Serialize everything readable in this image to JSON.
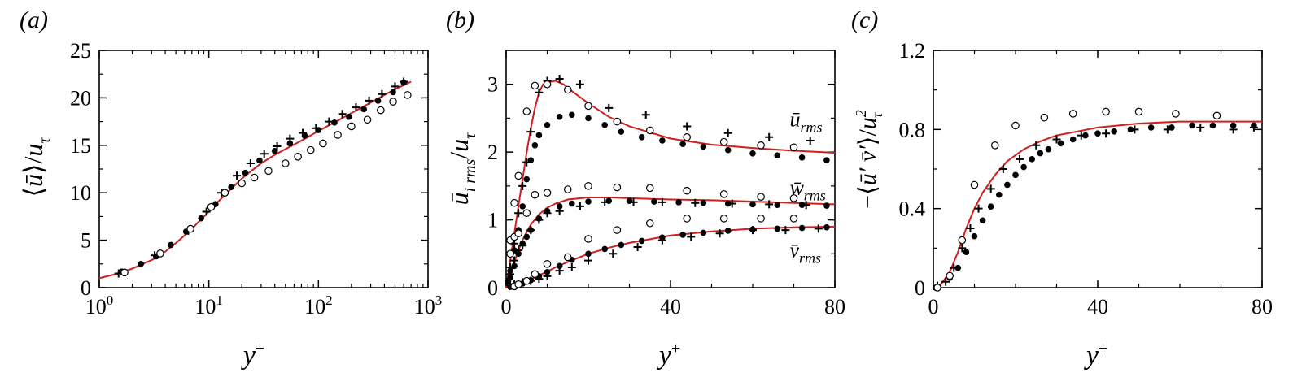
{
  "chart_data": [
    {
      "panel": "(a)",
      "type": "scatter",
      "xscale": "log",
      "xlim": [
        1,
        1000
      ],
      "ylim": [
        0,
        25
      ],
      "xlabel": "y+",
      "ylabel": "⟨ū⟩/uτ",
      "x_ticks": [
        1,
        10,
        100,
        1000
      ],
      "x_tick_labels": [
        {
          "base": "10",
          "exp": "0"
        },
        {
          "base": "10",
          "exp": "1"
        },
        {
          "base": "10",
          "exp": "2"
        },
        {
          "base": "10",
          "exp": "3"
        }
      ],
      "y_ticks": [
        0,
        5,
        10,
        15,
        20,
        25
      ],
      "y_tick_labels": [
        "0",
        "5",
        "10",
        "15",
        "20",
        "25"
      ],
      "series": [
        {
          "marker": "line",
          "color": "#d11f1f",
          "x": [
            1,
            1.5,
            2,
            3,
            4,
            5,
            6,
            7,
            8,
            10,
            12,
            15,
            20,
            25,
            30,
            40,
            50,
            70,
            100,
            150,
            200,
            300,
            400,
            500,
            700
          ],
          "y": [
            1.0,
            1.5,
            2.0,
            2.9,
            3.8,
            4.7,
            5.5,
            6.2,
            6.9,
            8.0,
            9.0,
            10.1,
            11.5,
            12.4,
            13.1,
            14.0,
            14.6,
            15.5,
            16.5,
            17.6,
            18.4,
            19.5,
            20.3,
            20.9,
            21.7
          ]
        },
        {
          "marker": "filled-circle",
          "color": "#000000",
          "x": [
            1.6,
            2.4,
            3.3,
            4.5,
            6.2,
            8.5,
            11.5,
            16,
            21.5,
            29,
            40,
            55,
            75,
            100,
            140,
            190,
            260,
            350,
            480,
            600
          ],
          "y": [
            1.7,
            2.5,
            3.3,
            4.5,
            5.9,
            7.3,
            8.8,
            10.6,
            12.1,
            13.4,
            14.4,
            15.2,
            16.0,
            16.6,
            17.4,
            18.0,
            18.8,
            19.7,
            20.6,
            21.6
          ]
        },
        {
          "marker": "plus",
          "color": "#000000",
          "x": [
            1.5,
            3.2,
            6.5,
            9.5,
            13,
            18,
            24,
            32,
            42,
            55,
            72,
            95,
            125,
            165,
            220,
            290,
            380,
            500,
            600
          ],
          "y": [
            1.5,
            3.4,
            6.0,
            8.0,
            10.0,
            11.8,
            13.1,
            14.1,
            14.9,
            15.7,
            16.3,
            16.8,
            17.5,
            18.3,
            19.0,
            19.7,
            20.4,
            21.2,
            21.7
          ]
        },
        {
          "marker": "open-circle",
          "color": "#000000",
          "x": [
            1.7,
            3.6,
            6.8,
            10.5,
            14,
            20,
            26,
            35,
            50,
            65,
            85,
            110,
            150,
            200,
            280,
            370,
            480,
            650
          ],
          "y": [
            1.6,
            3.6,
            6.2,
            8.5,
            10.0,
            11.0,
            11.6,
            12.3,
            13.1,
            13.8,
            14.5,
            15.2,
            16.1,
            17.0,
            17.7,
            18.7,
            19.6,
            20.3
          ]
        }
      ]
    },
    {
      "panel": "(b)",
      "type": "scatter",
      "xlim": [
        0,
        80
      ],
      "ylim": [
        0,
        3.5
      ],
      "xlabel": "y+",
      "ylabel": "ū_i rms/uτ",
      "x_ticks": [
        0,
        40,
        80
      ],
      "x_tick_labels": [
        "0",
        "40",
        "80"
      ],
      "y_ticks": [
        0,
        1,
        2,
        3
      ],
      "y_tick_labels": [
        "0",
        "1",
        "2",
        "3"
      ],
      "annotations": [
        {
          "name": "u-rms",
          "base": "ū",
          "sub": "rms",
          "x": 69,
          "y": 2.38
        },
        {
          "name": "w-rms",
          "base": "w̄",
          "sub": "rms",
          "x": 69,
          "y": 1.37
        },
        {
          "name": "v-rms",
          "base": "v̄",
          "sub": "rms",
          "x": 69,
          "y": 0.45
        }
      ],
      "series": [
        {
          "name": "u_rms",
          "marker": "line",
          "color": "#d11f1f",
          "x": [
            0,
            1,
            2,
            3,
            4,
            5,
            6,
            7,
            8,
            9,
            10,
            12,
            14,
            16,
            20,
            25,
            30,
            40,
            50,
            60,
            70,
            80
          ],
          "y": [
            0,
            0.4,
            0.8,
            1.2,
            1.6,
            2.0,
            2.35,
            2.65,
            2.88,
            3.0,
            3.03,
            3.05,
            3.0,
            2.9,
            2.72,
            2.52,
            2.38,
            2.2,
            2.11,
            2.06,
            2.02,
            1.99
          ]
        },
        {
          "name": "w_rms",
          "marker": "line",
          "color": "#d11f1f",
          "x": [
            0,
            1,
            2,
            3,
            4,
            5,
            6,
            8,
            10,
            12,
            15,
            20,
            25,
            30,
            40,
            50,
            60,
            70,
            80
          ],
          "y": [
            0,
            0.18,
            0.38,
            0.55,
            0.7,
            0.82,
            0.93,
            1.08,
            1.18,
            1.24,
            1.3,
            1.33,
            1.33,
            1.32,
            1.3,
            1.29,
            1.27,
            1.25,
            1.23
          ]
        },
        {
          "name": "v_rms",
          "marker": "line",
          "color": "#d11f1f",
          "x": [
            0,
            2,
            4,
            6,
            8,
            10,
            12,
            15,
            20,
            25,
            30,
            40,
            50,
            60,
            70,
            80
          ],
          "y": [
            0,
            0.02,
            0.06,
            0.12,
            0.18,
            0.24,
            0.3,
            0.38,
            0.5,
            0.59,
            0.66,
            0.77,
            0.83,
            0.87,
            0.89,
            0.9
          ]
        },
        {
          "name": "u_rms",
          "marker": "filled-circle",
          "color": "#000000",
          "x": [
            0.5,
            1,
            2,
            3,
            4,
            5,
            6,
            7,
            8,
            10,
            13,
            16,
            20,
            24,
            28,
            33,
            38,
            43,
            48,
            54,
            60,
            66,
            72,
            78
          ],
          "y": [
            0.1,
            0.25,
            0.55,
            0.85,
            1.2,
            1.6,
            1.88,
            2.1,
            2.25,
            2.4,
            2.52,
            2.55,
            2.5,
            2.4,
            2.3,
            2.22,
            2.17,
            2.12,
            2.08,
            2.03,
            1.98,
            1.95,
            1.92,
            1.88
          ]
        },
        {
          "name": "w_rms",
          "marker": "filled-circle",
          "color": "#000000",
          "x": [
            0.5,
            1,
            2,
            3,
            4,
            5,
            6,
            8,
            10,
            13,
            16,
            20,
            25,
            30,
            36,
            42,
            48,
            54,
            60,
            66,
            72,
            78
          ],
          "y": [
            0.06,
            0.15,
            0.32,
            0.5,
            0.65,
            0.75,
            0.85,
            1.02,
            1.13,
            1.2,
            1.24,
            1.27,
            1.28,
            1.28,
            1.27,
            1.26,
            1.25,
            1.24,
            1.23,
            1.22,
            1.22,
            1.21
          ]
        },
        {
          "name": "v_rms",
          "marker": "filled-circle",
          "color": "#000000",
          "x": [
            1,
            2,
            3,
            4,
            6,
            8,
            10,
            13,
            16,
            20,
            24,
            28,
            33,
            38,
            43,
            48,
            54,
            60,
            66,
            72,
            78
          ],
          "y": [
            0.01,
            0.02,
            0.04,
            0.06,
            0.11,
            0.17,
            0.23,
            0.32,
            0.41,
            0.5,
            0.57,
            0.63,
            0.69,
            0.74,
            0.78,
            0.81,
            0.84,
            0.86,
            0.87,
            0.88,
            0.89
          ]
        },
        {
          "name": "u_rms",
          "marker": "plus",
          "color": "#000000",
          "x": [
            1,
            2,
            3,
            4,
            5,
            6,
            8,
            10,
            13,
            18,
            25,
            34,
            44,
            54,
            64,
            74
          ],
          "y": [
            0.3,
            0.65,
            1.1,
            1.5,
            1.85,
            2.3,
            2.88,
            3.05,
            3.08,
            3.0,
            2.65,
            2.55,
            2.38,
            2.28,
            2.22,
            2.17
          ]
        },
        {
          "name": "w_rms",
          "marker": "plus",
          "color": "#000000",
          "x": [
            1,
            2,
            3,
            4,
            6,
            8,
            10,
            13,
            18,
            24,
            31,
            38,
            46,
            55,
            64,
            73
          ],
          "y": [
            0.2,
            0.4,
            0.55,
            0.62,
            0.85,
            1.0,
            1.1,
            1.13,
            1.2,
            1.26,
            1.26,
            1.26,
            1.25,
            1.24,
            1.23,
            1.22
          ]
        },
        {
          "name": "v_rms",
          "marker": "plus",
          "color": "#000000",
          "x": [
            2,
            4,
            6,
            8,
            10,
            13,
            16,
            20,
            26,
            32,
            38,
            45,
            52,
            60,
            68,
            76
          ],
          "y": [
            0.05,
            0.08,
            0.1,
            0.13,
            0.17,
            0.25,
            0.3,
            0.4,
            0.5,
            0.6,
            0.7,
            0.75,
            0.8,
            0.85,
            0.85,
            0.87
          ]
        },
        {
          "name": "u_rms",
          "marker": "open-circle",
          "color": "#000000",
          "x": [
            1,
            2,
            3,
            5,
            7,
            10,
            15,
            20,
            27,
            35,
            44,
            53,
            62,
            70
          ],
          "y": [
            0.7,
            1.25,
            1.65,
            2.6,
            2.98,
            3.0,
            2.92,
            2.68,
            2.45,
            2.32,
            2.22,
            2.15,
            2.1,
            2.07
          ]
        },
        {
          "name": "w_rms",
          "marker": "open-circle",
          "color": "#000000",
          "x": [
            1,
            2,
            3,
            5,
            7,
            10,
            15,
            20,
            27,
            35,
            44,
            53,
            62,
            70
          ],
          "y": [
            0.5,
            0.75,
            0.8,
            1.1,
            1.37,
            1.4,
            1.45,
            1.5,
            1.48,
            1.47,
            1.43,
            1.38,
            1.34,
            1.32
          ]
        },
        {
          "name": "v_rms",
          "marker": "open-circle",
          "color": "#000000",
          "x": [
            2,
            3,
            5,
            7,
            10,
            15,
            20,
            27,
            35,
            44,
            53,
            62,
            70
          ],
          "y": [
            0.02,
            0.05,
            0.1,
            0.2,
            0.35,
            0.45,
            0.72,
            0.85,
            0.95,
            1.02,
            1.02,
            1.02,
            1.02
          ]
        }
      ]
    },
    {
      "panel": "(c)",
      "type": "scatter",
      "xlim": [
        0,
        80
      ],
      "ylim": [
        0,
        1.2
      ],
      "xlabel": "y+",
      "ylabel": "−⟨ū′v̄′⟩/uτ²",
      "x_ticks": [
        0,
        40,
        80
      ],
      "x_tick_labels": [
        "0",
        "40",
        "80"
      ],
      "y_ticks": [
        0,
        0.4,
        0.8,
        1.2
      ],
      "y_tick_labels": [
        "0",
        "0.4",
        "0.8",
        "1.2"
      ],
      "series": [
        {
          "marker": "line",
          "color": "#d11f1f",
          "x": [
            0,
            2,
            4,
            6,
            8,
            10,
            12,
            15,
            18,
            22,
            26,
            30,
            35,
            40,
            50,
            60,
            70,
            80
          ],
          "y": [
            0,
            0.02,
            0.08,
            0.18,
            0.3,
            0.4,
            0.48,
            0.57,
            0.64,
            0.7,
            0.74,
            0.77,
            0.79,
            0.81,
            0.83,
            0.84,
            0.84,
            0.84
          ]
        },
        {
          "marker": "filled-circle",
          "color": "#000000",
          "x": [
            0.5,
            4,
            6,
            8,
            10,
            12,
            14,
            16,
            18,
            20,
            22,
            24,
            26,
            28,
            31,
            34,
            37,
            40,
            44,
            48,
            53,
            58,
            63,
            68,
            73,
            78
          ],
          "y": [
            0,
            0.05,
            0.1,
            0.18,
            0.26,
            0.34,
            0.41,
            0.47,
            0.52,
            0.57,
            0.61,
            0.65,
            0.68,
            0.7,
            0.73,
            0.75,
            0.77,
            0.78,
            0.79,
            0.8,
            0.81,
            0.81,
            0.82,
            0.82,
            0.82,
            0.82
          ]
        },
        {
          "marker": "plus",
          "color": "#000000",
          "x": [
            1,
            3,
            5,
            7,
            9,
            11,
            14,
            17,
            21,
            25,
            30,
            36,
            42,
            49,
            57,
            65,
            73,
            78
          ],
          "y": [
            0.01,
            0.03,
            0.1,
            0.2,
            0.3,
            0.4,
            0.5,
            0.6,
            0.65,
            0.72,
            0.75,
            0.77,
            0.78,
            0.8,
            0.8,
            0.81,
            0.8,
            0.81
          ]
        },
        {
          "marker": "open-circle",
          "color": "#000000",
          "x": [
            1,
            4,
            7,
            10,
            15,
            20,
            27,
            34,
            42,
            50,
            59,
            69
          ],
          "y": [
            0,
            0.06,
            0.24,
            0.52,
            0.72,
            0.82,
            0.86,
            0.88,
            0.89,
            0.89,
            0.88,
            0.87
          ]
        }
      ]
    }
  ]
}
